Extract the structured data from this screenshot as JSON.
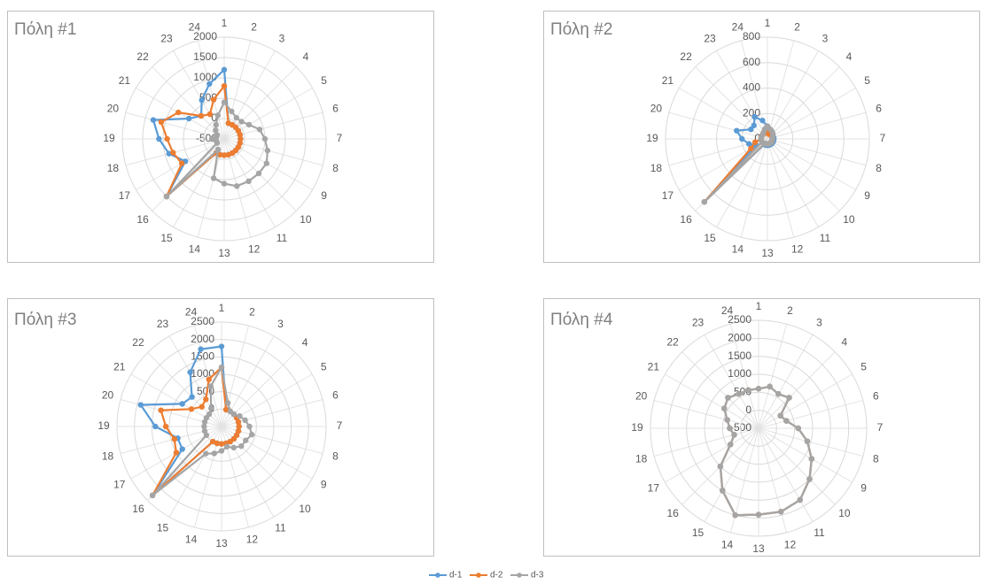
{
  "chart_data": [
    {
      "type": "radar",
      "title": "Πόλη #1",
      "categories": [
        "1",
        "2",
        "3",
        "4",
        "5",
        "6",
        "7",
        "8",
        "9",
        "10",
        "11",
        "12",
        "13",
        "14",
        "15",
        "16",
        "17",
        "18",
        "19",
        "20",
        "21",
        "22",
        "23",
        "24"
      ],
      "rlim": [
        -500,
        2000
      ],
      "rticks": [
        -500,
        0,
        500,
        1000,
        1500,
        2000
      ],
      "series": [
        {
          "name": "d-1",
          "color": "#5b9bd5",
          "values": [
            1200,
            -100,
            -100,
            -100,
            -100,
            -100,
            -100,
            -100,
            -100,
            -100,
            -100,
            -100,
            -100,
            -100,
            -100,
            1500,
            600,
            900,
            1100,
            1300,
            500,
            300,
            600,
            900
          ]
        },
        {
          "name": "d-2",
          "color": "#ed7d31",
          "values": [
            800,
            -100,
            -100,
            -100,
            -100,
            -100,
            -100,
            -100,
            -100,
            -100,
            -100,
            -100,
            -100,
            -100,
            -100,
            1500,
            700,
            800,
            900,
            1100,
            800,
            300,
            200,
            500
          ]
        },
        {
          "name": "d-3",
          "color": "#a5a5a5",
          "values": [
            400,
            200,
            100,
            100,
            200,
            400,
            500,
            600,
            700,
            700,
            700,
            700,
            600,
            500,
            -200,
            1500,
            -300,
            -300,
            -200,
            -300,
            -300,
            -200,
            -100,
            100
          ]
        }
      ]
    },
    {
      "type": "radar",
      "title": "Πόλη #2",
      "categories": [
        "1",
        "2",
        "3",
        "4",
        "5",
        "6",
        "7",
        "8",
        "9",
        "10",
        "11",
        "12",
        "13",
        "14",
        "15",
        "16",
        "17",
        "18",
        "19",
        "20",
        "21",
        "22",
        "23",
        "24"
      ],
      "rlim": [
        0,
        800
      ],
      "rticks": [
        0,
        200,
        400,
        600,
        800
      ],
      "series": [
        {
          "name": "d-1",
          "color": "#5b9bd5",
          "values": [
            100,
            50,
            50,
            50,
            50,
            50,
            50,
            50,
            50,
            50,
            50,
            50,
            50,
            50,
            50,
            700,
            100,
            150,
            200,
            250,
            150,
            150,
            200,
            150
          ]
        },
        {
          "name": "d-2",
          "color": "#ed7d31",
          "values": [
            80,
            40,
            40,
            40,
            40,
            40,
            40,
            40,
            40,
            40,
            40,
            40,
            40,
            40,
            40,
            700,
            150,
            100,
            50,
            50,
            50,
            50,
            50,
            60
          ]
        },
        {
          "name": "d-3",
          "color": "#a5a5a5",
          "values": [
            100,
            80,
            70,
            60,
            50,
            40,
            40,
            40,
            40,
            40,
            40,
            40,
            40,
            40,
            40,
            700,
            50,
            50,
            50,
            50,
            50,
            50,
            60,
            80
          ]
        }
      ]
    },
    {
      "type": "radar",
      "title": "Πόλη #3",
      "categories": [
        "1",
        "2",
        "3",
        "4",
        "5",
        "6",
        "7",
        "8",
        "9",
        "10",
        "11",
        "12",
        "13",
        "14",
        "15",
        "16",
        "17",
        "18",
        "19",
        "20",
        "21",
        "22",
        "23",
        "24"
      ],
      "rlim": [
        -500,
        2500
      ],
      "rticks": [
        0,
        500,
        1000,
        1500,
        2000,
        2500
      ],
      "series": [
        {
          "name": "d-1",
          "color": "#5b9bd5",
          "values": [
            1800,
            0,
            0,
            0,
            0,
            0,
            0,
            0,
            0,
            0,
            0,
            0,
            0,
            0,
            0,
            2300,
            800,
            800,
            1400,
            1900,
            800,
            700,
            1300,
            1800
          ]
        },
        {
          "name": "d-2",
          "color": "#ed7d31",
          "values": [
            1200,
            0,
            0,
            0,
            0,
            0,
            0,
            0,
            0,
            0,
            0,
            0,
            0,
            0,
            0,
            2300,
            1000,
            900,
            1100,
            1300,
            500,
            300,
            400,
            900
          ]
        },
        {
          "name": "d-3",
          "color": "#a5a5a5",
          "values": [
            1200,
            200,
            0,
            0,
            100,
            200,
            300,
            400,
            300,
            300,
            200,
            100,
            200,
            300,
            400,
            2300,
            0,
            0,
            0,
            0,
            0,
            0,
            100,
            700
          ]
        }
      ]
    },
    {
      "type": "radar",
      "title": "Πόλη #4",
      "categories": [
        "1",
        "2",
        "3",
        "4",
        "5",
        "6",
        "7",
        "8",
        "9",
        "10",
        "11",
        "12",
        "13",
        "14",
        "15",
        "16",
        "17",
        "18",
        "19",
        "20",
        "21",
        "22",
        "23",
        "24"
      ],
      "rlim": [
        -500,
        2500
      ],
      "rticks": [
        -500,
        0,
        500,
        1000,
        1500,
        2000,
        2500
      ],
      "series": [
        {
          "name": "d-1",
          "color": "#5b9bd5",
          "values": [
            600,
            700,
            600,
            700,
            200,
            300,
            600,
            900,
            1200,
            1500,
            1800,
            1900,
            1900,
            2000,
            1500,
            1000,
            400,
            200,
            300,
            400,
            600,
            700,
            600,
            600
          ]
        },
        {
          "name": "d-2",
          "color": "#ed7d31",
          "values": [
            600,
            700,
            600,
            700,
            200,
            300,
            600,
            900,
            1200,
            1500,
            1800,
            1900,
            1900,
            2000,
            1500,
            1000,
            400,
            200,
            300,
            400,
            600,
            700,
            600,
            600
          ]
        },
        {
          "name": "d-3",
          "color": "#a5a5a5",
          "values": [
            600,
            700,
            600,
            700,
            200,
            300,
            600,
            900,
            1200,
            1500,
            1800,
            1900,
            1900,
            2000,
            1500,
            1000,
            400,
            200,
            300,
            400,
            600,
            700,
            600,
            600
          ]
        }
      ]
    }
  ]
}
